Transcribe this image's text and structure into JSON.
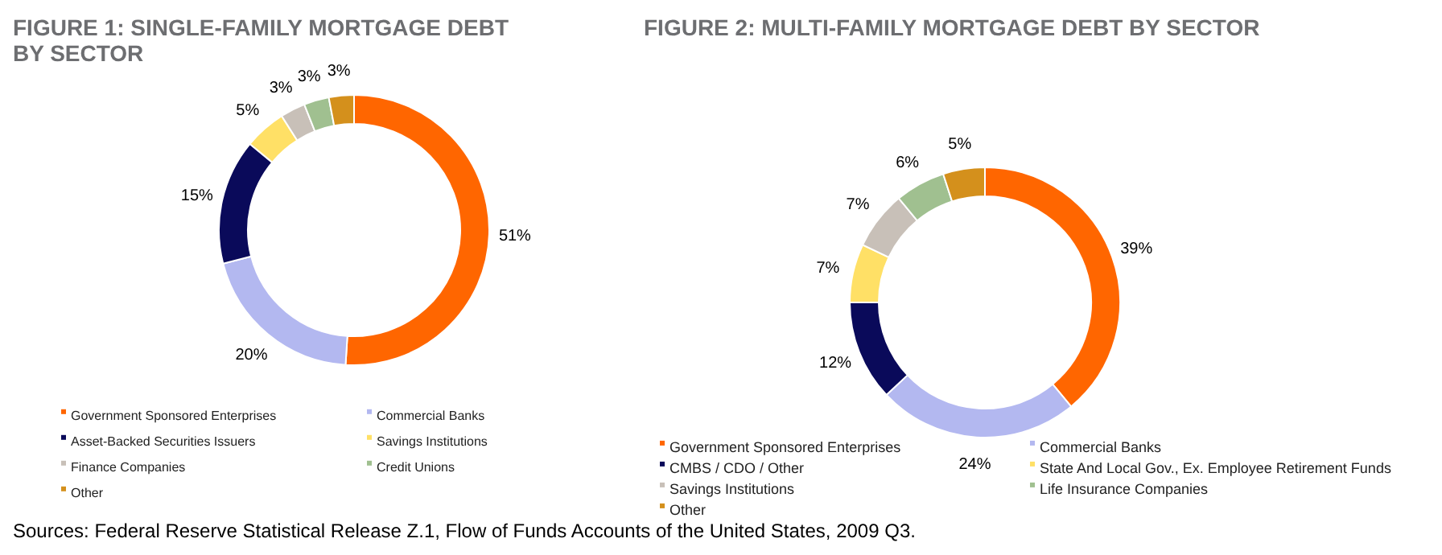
{
  "chart_data": [
    {
      "type": "donut",
      "title": "FIGURE 1: SINGLE-FAMILY MORTGAGE DEBT BY SECTOR",
      "categories": [
        "Government Sponsored Enterprises",
        "Commercial Banks",
        "Asset-Backed Securities Issuers",
        "Savings Institutions",
        "Finance Companies",
        "Credit Unions",
        "Other"
      ],
      "values": [
        51,
        20,
        15,
        5,
        3,
        3,
        3
      ],
      "colors": [
        "#ff6600",
        "#b3b8f0",
        "#0a0a5a",
        "#ffe066",
        "#c8c0b8",
        "#a0c090",
        "#d4901c"
      ],
      "value_labels": [
        "51%",
        "20%",
        "15%",
        "5%",
        "3%",
        "3%",
        "3%"
      ],
      "legend": "bottom"
    },
    {
      "type": "donut",
      "title": "FIGURE 2: MULTI-FAMILY MORTGAGE DEBT BY SECTOR",
      "categories": [
        "Government Sponsored Enterprises",
        "Commercial Banks",
        "CMBS / CDO / Other",
        "State And Local Gov., Ex. Employee Retirement Funds",
        "Savings Institutions",
        "Life Insurance Companies",
        "Other"
      ],
      "values": [
        39,
        24,
        12,
        7,
        7,
        6,
        5
      ],
      "colors": [
        "#ff6600",
        "#b3b8f0",
        "#0a0a5a",
        "#ffe066",
        "#c8c0b8",
        "#a0c090",
        "#d4901c"
      ],
      "value_labels": [
        "39%",
        "24%",
        "12%",
        "7%",
        "7%",
        "6%",
        "5%"
      ],
      "legend": "bottom",
      "annotations": [
        "Sources: Federal Reserve Statistical Release Z.1, Flow of Funds Accounts of the United States, 2009 Q3."
      ]
    }
  ]
}
